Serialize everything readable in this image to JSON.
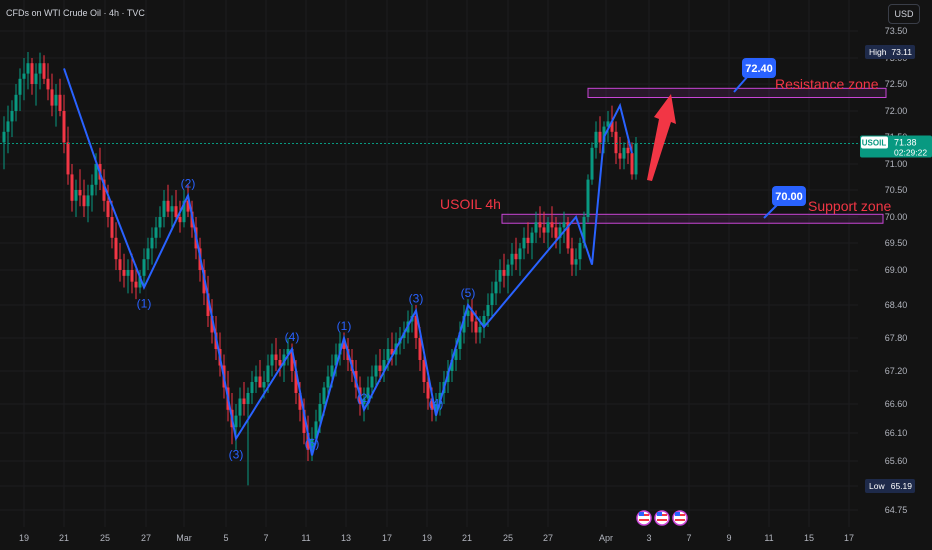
{
  "header": {
    "title": "CFDs on WTI Crude Oil · 4h · TVC"
  },
  "currency_button": "USD",
  "badges": {
    "high_label": "High",
    "high_value": "73.11",
    "low_label": "Low",
    "low_value": "65.19",
    "symbol": "USOIL",
    "price": "71.38",
    "countdown": "02:29:22"
  },
  "annotations": {
    "chart_label": "USOIL 4h",
    "resistance": {
      "label": "Resistance zone",
      "callout": "72.40",
      "low": 72.25,
      "high": 72.42
    },
    "support": {
      "label": "Support zone",
      "callout": "70.00",
      "low": 69.88,
      "high": 70.05
    }
  },
  "colors": {
    "background": "#131313",
    "up": "#089981",
    "down": "#f23645",
    "wave": "#2962ff",
    "zone": "#c845d6",
    "callout": "#2962ff",
    "arrow": "#f23645",
    "price_line": "#089981"
  },
  "chart_data": {
    "type": "candlestick",
    "title": "CFDs on WTI Crude Oil · 4h · TVC",
    "ylim": [
      64.5,
      73.8
    ],
    "y_ticks": [
      "73.50",
      "73.00",
      "72.50",
      "72.00",
      "71.50",
      "71.00",
      "70.50",
      "70.00",
      "69.50",
      "69.00",
      "68.40",
      "67.80",
      "67.20",
      "66.60",
      "66.10",
      "65.60",
      "65.19",
      "64.75"
    ],
    "x_ticks": [
      "19",
      "21",
      "25",
      "27",
      "Mar",
      "5",
      "7",
      "11",
      "13",
      "17",
      "19",
      "21",
      "25",
      "27",
      "Apr",
      "3",
      "7",
      "9",
      "11",
      "15",
      "17"
    ],
    "current_price": 71.38,
    "high": 73.11,
    "low": 65.19,
    "wave_points": [
      {
        "t": 15,
        "p": 72.8
      },
      {
        "t": 25,
        "p": 70.6
      },
      {
        "t": 35,
        "p": 68.7
      },
      {
        "t": 46,
        "p": 70.4,
        "label": "(2)"
      },
      {
        "t": 58,
        "p": 66.0
      },
      {
        "t": 72,
        "p": 67.6,
        "label": "(4)"
      },
      {
        "t": 77,
        "p": 65.7,
        "label": "(5)"
      },
      {
        "t": 85,
        "p": 67.8,
        "label": "(1)"
      },
      {
        "t": 90,
        "p": 66.5,
        "label": "(2)"
      },
      {
        "t": 103,
        "p": 68.3,
        "label": "(3)"
      },
      {
        "t": 108,
        "p": 66.4,
        "label": "(4)"
      },
      {
        "t": 116,
        "p": 68.4,
        "label": "(5)"
      },
      {
        "t": 120,
        "p": 68.0
      },
      {
        "t": 143,
        "p": 70.0
      },
      {
        "t": 147,
        "p": 69.1
      },
      {
        "t": 150,
        "p": 71.5
      },
      {
        "t": 154,
        "p": 72.1
      },
      {
        "t": 157,
        "p": 71.2
      }
    ],
    "wave_labels_below": [
      {
        "t": 35,
        "p": 68.7,
        "label": "(1)"
      },
      {
        "t": 58,
        "p": 66.0,
        "label": "(3)"
      }
    ],
    "candles": [
      [
        71.4,
        71.9,
        70.9,
        71.6
      ],
      [
        71.6,
        72.1,
        71.2,
        71.8
      ],
      [
        71.8,
        72.2,
        71.5,
        72.0
      ],
      [
        72.0,
        72.5,
        71.8,
        72.3
      ],
      [
        72.3,
        72.8,
        72.0,
        72.6
      ],
      [
        72.6,
        73.0,
        72.2,
        72.7
      ],
      [
        72.7,
        73.11,
        72.4,
        72.9
      ],
      [
        72.9,
        73.0,
        72.3,
        72.5
      ],
      [
        72.5,
        72.9,
        72.1,
        72.7
      ],
      [
        72.7,
        73.1,
        72.4,
        72.9
      ],
      [
        72.9,
        73.05,
        72.5,
        72.6
      ],
      [
        72.6,
        72.9,
        72.2,
        72.4
      ],
      [
        72.4,
        72.7,
        71.9,
        72.1
      ],
      [
        72.1,
        72.5,
        71.7,
        72.3
      ],
      [
        72.3,
        72.6,
        71.9,
        72.0
      ],
      [
        72.0,
        72.3,
        71.2,
        71.4
      ],
      [
        71.4,
        71.7,
        70.6,
        70.8
      ],
      [
        70.8,
        71.0,
        70.1,
        70.3
      ],
      [
        70.3,
        70.7,
        70.0,
        70.5
      ],
      [
        70.5,
        70.9,
        70.2,
        70.4
      ],
      [
        70.4,
        70.7,
        70.0,
        70.2
      ],
      [
        70.2,
        70.6,
        69.9,
        70.4
      ],
      [
        70.4,
        70.8,
        70.1,
        70.6
      ],
      [
        70.6,
        71.2,
        70.4,
        71.0
      ],
      [
        71.0,
        71.3,
        70.5,
        70.7
      ],
      [
        70.7,
        70.9,
        70.1,
        70.3
      ],
      [
        70.3,
        70.6,
        69.8,
        70.0
      ],
      [
        70.0,
        70.3,
        69.4,
        69.6
      ],
      [
        69.6,
        69.9,
        69.0,
        69.2
      ],
      [
        69.2,
        69.5,
        68.8,
        69.0
      ],
      [
        69.0,
        69.3,
        68.7,
        68.9
      ],
      [
        68.9,
        69.2,
        68.6,
        69.0
      ],
      [
        69.0,
        69.3,
        68.6,
        68.8
      ],
      [
        68.8,
        69.1,
        68.5,
        68.7
      ],
      [
        68.7,
        69.0,
        68.6,
        68.9
      ],
      [
        68.9,
        69.4,
        68.7,
        69.2
      ],
      [
        69.2,
        69.6,
        69.0,
        69.4
      ],
      [
        69.4,
        69.8,
        69.1,
        69.6
      ],
      [
        69.6,
        70.0,
        69.4,
        69.8
      ],
      [
        69.8,
        70.2,
        69.6,
        70.0
      ],
      [
        70.0,
        70.5,
        69.8,
        70.3
      ],
      [
        70.3,
        70.6,
        70.0,
        70.1
      ],
      [
        70.1,
        70.4,
        69.8,
        70.2
      ],
      [
        70.2,
        70.5,
        69.9,
        70.0
      ],
      [
        70.0,
        70.3,
        69.7,
        69.9
      ],
      [
        69.9,
        70.5,
        69.8,
        70.3
      ],
      [
        70.3,
        70.6,
        70.0,
        70.1
      ],
      [
        70.1,
        70.3,
        69.6,
        69.8
      ],
      [
        69.8,
        70.0,
        69.2,
        69.4
      ],
      [
        69.4,
        69.6,
        68.8,
        69.0
      ],
      [
        69.0,
        69.2,
        68.4,
        68.6
      ],
      [
        68.6,
        68.9,
        68.0,
        68.2
      ],
      [
        68.2,
        68.5,
        67.7,
        67.9
      ],
      [
        67.9,
        68.2,
        67.4,
        67.6
      ],
      [
        67.6,
        67.9,
        67.1,
        67.3
      ],
      [
        67.3,
        67.5,
        66.7,
        66.9
      ],
      [
        66.9,
        67.2,
        66.3,
        66.5
      ],
      [
        66.5,
        66.8,
        65.9,
        66.2
      ],
      [
        66.2,
        66.6,
        65.8,
        66.4
      ],
      [
        66.4,
        66.9,
        66.2,
        66.7
      ],
      [
        66.7,
        67.0,
        66.4,
        66.6
      ],
      [
        66.6,
        66.9,
        65.2,
        66.8
      ],
      [
        66.8,
        67.2,
        66.6,
        67.0
      ],
      [
        67.0,
        67.3,
        66.8,
        67.1
      ],
      [
        67.1,
        67.4,
        66.9,
        66.9
      ],
      [
        66.9,
        67.2,
        66.7,
        67.0
      ],
      [
        67.0,
        67.5,
        66.8,
        67.3
      ],
      [
        67.3,
        67.7,
        67.1,
        67.5
      ],
      [
        67.5,
        67.8,
        67.2,
        67.4
      ],
      [
        67.4,
        67.6,
        67.1,
        67.3
      ],
      [
        67.3,
        67.6,
        67.0,
        67.5
      ],
      [
        67.5,
        67.8,
        67.3,
        67.6
      ],
      [
        67.6,
        67.7,
        67.0,
        67.2
      ],
      [
        67.2,
        67.4,
        66.6,
        66.8
      ],
      [
        66.8,
        67.0,
        66.3,
        66.5
      ],
      [
        66.5,
        66.7,
        65.9,
        66.1
      ],
      [
        66.1,
        66.4,
        65.6,
        65.8
      ],
      [
        65.8,
        66.2,
        65.6,
        66.0
      ],
      [
        66.0,
        66.5,
        65.9,
        66.3
      ],
      [
        66.3,
        66.8,
        66.1,
        66.6
      ],
      [
        66.6,
        67.0,
        66.4,
        66.9
      ],
      [
        66.9,
        67.3,
        66.7,
        67.1
      ],
      [
        67.1,
        67.5,
        66.9,
        67.3
      ],
      [
        67.3,
        67.7,
        67.1,
        67.5
      ],
      [
        67.5,
        67.9,
        67.3,
        67.7
      ],
      [
        67.7,
        67.9,
        67.4,
        67.6
      ],
      [
        67.6,
        67.8,
        67.2,
        67.4
      ],
      [
        67.4,
        67.6,
        67.0,
        67.2
      ],
      [
        67.2,
        67.4,
        66.7,
        66.9
      ],
      [
        66.9,
        67.1,
        66.4,
        66.6
      ],
      [
        66.6,
        66.9,
        66.3,
        66.7
      ],
      [
        66.7,
        67.1,
        66.5,
        66.9
      ],
      [
        66.9,
        67.3,
        66.7,
        67.1
      ],
      [
        67.1,
        67.5,
        66.9,
        67.3
      ],
      [
        67.3,
        67.6,
        67.0,
        67.2
      ],
      [
        67.2,
        67.6,
        67.0,
        67.4
      ],
      [
        67.4,
        67.8,
        67.2,
        67.6
      ],
      [
        67.6,
        67.9,
        67.3,
        67.5
      ],
      [
        67.5,
        67.9,
        67.3,
        67.7
      ],
      [
        67.7,
        68.0,
        67.5,
        67.8
      ],
      [
        67.8,
        68.1,
        67.6,
        67.9
      ],
      [
        67.9,
        68.3,
        67.7,
        68.1
      ],
      [
        68.1,
        68.4,
        67.9,
        68.2
      ],
      [
        68.2,
        68.4,
        67.6,
        67.8
      ],
      [
        67.8,
        68.0,
        67.2,
        67.4
      ],
      [
        67.4,
        67.6,
        66.8,
        67.0
      ],
      [
        67.0,
        67.2,
        66.5,
        66.7
      ],
      [
        66.7,
        66.9,
        66.3,
        66.5
      ],
      [
        66.5,
        66.8,
        66.3,
        66.6
      ],
      [
        66.6,
        67.0,
        66.4,
        66.8
      ],
      [
        66.8,
        67.2,
        66.6,
        67.0
      ],
      [
        67.0,
        67.4,
        66.8,
        67.2
      ],
      [
        67.2,
        67.6,
        67.0,
        67.4
      ],
      [
        67.4,
        67.8,
        67.2,
        67.6
      ],
      [
        67.6,
        68.1,
        67.4,
        67.9
      ],
      [
        67.9,
        68.4,
        67.7,
        68.2
      ],
      [
        68.2,
        68.5,
        68.0,
        68.3
      ],
      [
        68.3,
        68.5,
        67.9,
        68.1
      ],
      [
        68.1,
        68.3,
        67.7,
        67.9
      ],
      [
        67.9,
        68.2,
        67.7,
        68.0
      ],
      [
        68.0,
        68.3,
        67.8,
        68.2
      ],
      [
        68.2,
        68.6,
        68.0,
        68.4
      ],
      [
        68.4,
        68.8,
        68.2,
        68.6
      ],
      [
        68.6,
        69.0,
        68.4,
        68.8
      ],
      [
        68.8,
        69.2,
        68.6,
        69.0
      ],
      [
        69.0,
        69.3,
        68.7,
        68.9
      ],
      [
        68.9,
        69.2,
        68.6,
        69.1
      ],
      [
        69.1,
        69.5,
        68.9,
        69.3
      ],
      [
        69.3,
        69.6,
        69.0,
        69.2
      ],
      [
        69.2,
        69.5,
        68.9,
        69.4
      ],
      [
        69.4,
        69.8,
        69.2,
        69.6
      ],
      [
        69.6,
        69.9,
        69.3,
        69.5
      ],
      [
        69.5,
        69.8,
        69.2,
        69.7
      ],
      [
        69.7,
        70.1,
        69.5,
        69.9
      ],
      [
        69.9,
        70.2,
        69.6,
        69.8
      ],
      [
        69.8,
        70.1,
        69.5,
        69.7
      ],
      [
        69.7,
        70.0,
        69.4,
        69.9
      ],
      [
        69.9,
        70.2,
        69.6,
        69.8
      ],
      [
        69.8,
        70.0,
        69.4,
        69.6
      ],
      [
        69.6,
        69.9,
        69.3,
        69.8
      ],
      [
        69.8,
        70.1,
        69.5,
        69.9
      ],
      [
        69.9,
        70.0,
        69.3,
        69.4
      ],
      [
        69.4,
        69.6,
        68.9,
        69.1
      ],
      [
        69.1,
        69.4,
        68.9,
        69.2
      ],
      [
        69.2,
        69.6,
        69.0,
        69.5
      ],
      [
        69.5,
        70.1,
        69.4,
        70.0
      ],
      [
        70.0,
        70.8,
        69.9,
        70.7
      ],
      [
        70.7,
        71.4,
        70.6,
        71.3
      ],
      [
        71.3,
        71.8,
        71.1,
        71.6
      ],
      [
        71.6,
        71.9,
        71.2,
        71.4
      ],
      [
        71.4,
        71.8,
        71.2,
        71.7
      ],
      [
        71.7,
        72.0,
        71.4,
        71.8
      ],
      [
        71.8,
        72.1,
        71.5,
        71.6
      ],
      [
        71.6,
        71.8,
        71.0,
        71.2
      ],
      [
        71.2,
        71.5,
        70.9,
        71.1
      ],
      [
        71.1,
        71.4,
        70.9,
        71.3
      ],
      [
        71.3,
        71.5,
        71.0,
        71.2
      ],
      [
        71.2,
        71.4,
        70.7,
        70.8
      ],
      [
        70.8,
        71.5,
        70.7,
        71.38
      ]
    ]
  }
}
